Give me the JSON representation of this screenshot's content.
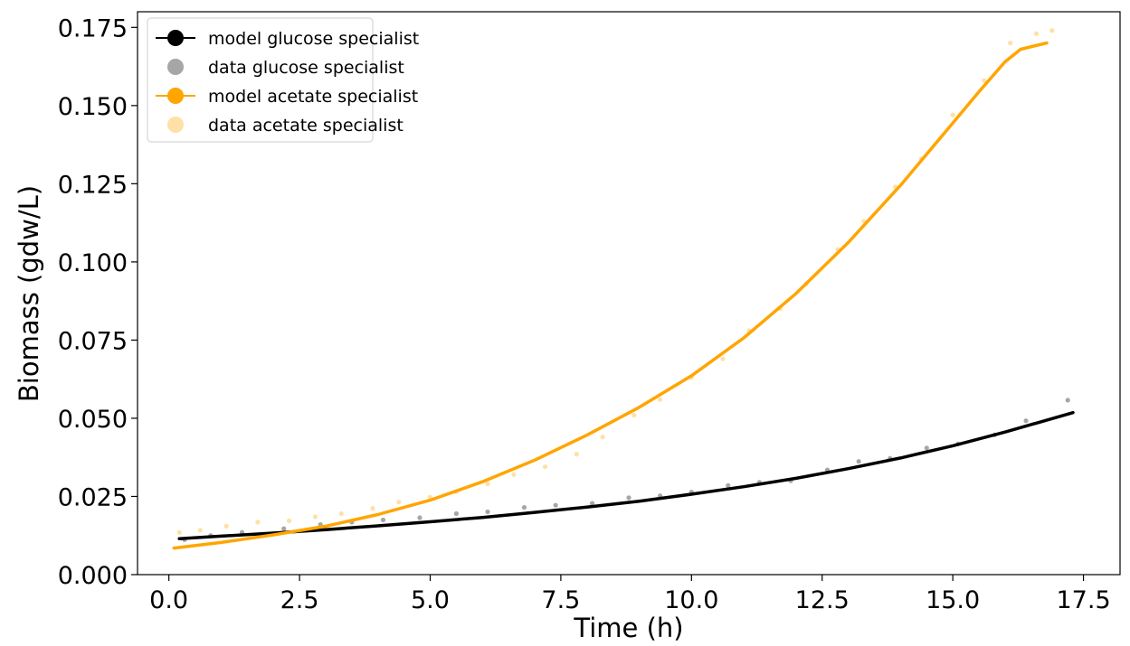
{
  "chart_data": {
    "type": "line",
    "title": "",
    "xlabel": "Time (h)",
    "ylabel": "Biomass (gdw/L)",
    "xlim": [
      -0.6,
      18.2
    ],
    "ylim": [
      0.0,
      0.18
    ],
    "xticks": [
      0.0,
      2.5,
      5.0,
      7.5,
      10.0,
      12.5,
      15.0,
      17.5
    ],
    "yticks": [
      0.0,
      0.025,
      0.05,
      0.075,
      0.1,
      0.125,
      0.15,
      0.175
    ],
    "xtick_labels": [
      "0.0",
      "2.5",
      "5.0",
      "7.5",
      "10.0",
      "12.5",
      "15.0",
      "17.5"
    ],
    "ytick_labels": [
      "0.000",
      "0.025",
      "0.050",
      "0.075",
      "0.100",
      "0.125",
      "0.150",
      "0.175"
    ],
    "grid": false,
    "legend_position": "top-left",
    "series": [
      {
        "name": "model glucose specialist",
        "kind": "line",
        "color": "#000000",
        "x": [
          0.2,
          1.0,
          2.0,
          3.0,
          4.0,
          5.0,
          6.0,
          7.0,
          8.0,
          9.0,
          10.0,
          11.0,
          12.0,
          13.0,
          14.0,
          15.0,
          16.0,
          17.3
        ],
        "y": [
          0.0115,
          0.0123,
          0.0133,
          0.0144,
          0.0156,
          0.0169,
          0.0183,
          0.0199,
          0.0216,
          0.0235,
          0.0257,
          0.0281,
          0.0308,
          0.0339,
          0.0373,
          0.0412,
          0.0456,
          0.0518
        ]
      },
      {
        "name": "data glucose specialist",
        "kind": "scatter",
        "color": "#000000",
        "alpha": 0.35,
        "x": [
          0.3,
          0.8,
          1.4,
          2.2,
          2.9,
          3.5,
          4.1,
          4.8,
          5.5,
          6.1,
          6.8,
          7.4,
          8.1,
          8.8,
          9.4,
          10.0,
          10.7,
          11.3,
          11.9,
          12.6,
          13.2,
          13.8,
          14.5,
          15.1,
          15.8,
          16.4,
          17.2
        ],
        "y": [
          0.0112,
          0.0125,
          0.0135,
          0.0147,
          0.016,
          0.0168,
          0.0175,
          0.0182,
          0.0195,
          0.0201,
          0.0215,
          0.0222,
          0.0228,
          0.0246,
          0.0252,
          0.0264,
          0.0285,
          0.0295,
          0.03,
          0.0335,
          0.0362,
          0.0372,
          0.0405,
          0.0418,
          0.0447,
          0.0492,
          0.0558
        ]
      },
      {
        "name": "model acetate specialist",
        "kind": "line",
        "color": "#FFA500",
        "x": [
          0.1,
          1.0,
          2.0,
          3.0,
          4.0,
          5.0,
          6.0,
          7.0,
          8.0,
          9.0,
          10.0,
          11.0,
          12.0,
          13.0,
          14.0,
          15.0,
          15.5,
          16.0,
          16.3,
          16.8
        ],
        "y": [
          0.0085,
          0.0103,
          0.0127,
          0.0155,
          0.0192,
          0.0238,
          0.0297,
          0.0366,
          0.0446,
          0.0535,
          0.0636,
          0.0757,
          0.0899,
          0.1062,
          0.1245,
          0.1444,
          0.1544,
          0.164,
          0.168,
          0.17
        ]
      },
      {
        "name": "data acetate specialist",
        "kind": "scatter",
        "color": "#FFA500",
        "alpha": 0.35,
        "x": [
          0.2,
          0.6,
          1.1,
          1.7,
          2.3,
          2.8,
          3.3,
          3.9,
          4.4,
          5.0,
          5.5,
          6.1,
          6.6,
          7.2,
          7.8,
          8.3,
          8.9,
          9.4,
          10.0,
          10.6,
          11.1,
          11.7,
          12.2,
          12.8,
          13.3,
          13.9,
          14.4,
          15.0,
          15.6,
          16.1,
          16.6,
          16.9
        ],
        "y": [
          0.0135,
          0.0142,
          0.0155,
          0.0168,
          0.0172,
          0.0185,
          0.0195,
          0.0212,
          0.0232,
          0.0248,
          0.0265,
          0.029,
          0.032,
          0.0345,
          0.0385,
          0.044,
          0.051,
          0.056,
          0.063,
          0.069,
          0.078,
          0.085,
          0.093,
          0.104,
          0.113,
          0.124,
          0.133,
          0.147,
          0.158,
          0.17,
          0.173,
          0.174
        ]
      }
    ]
  }
}
